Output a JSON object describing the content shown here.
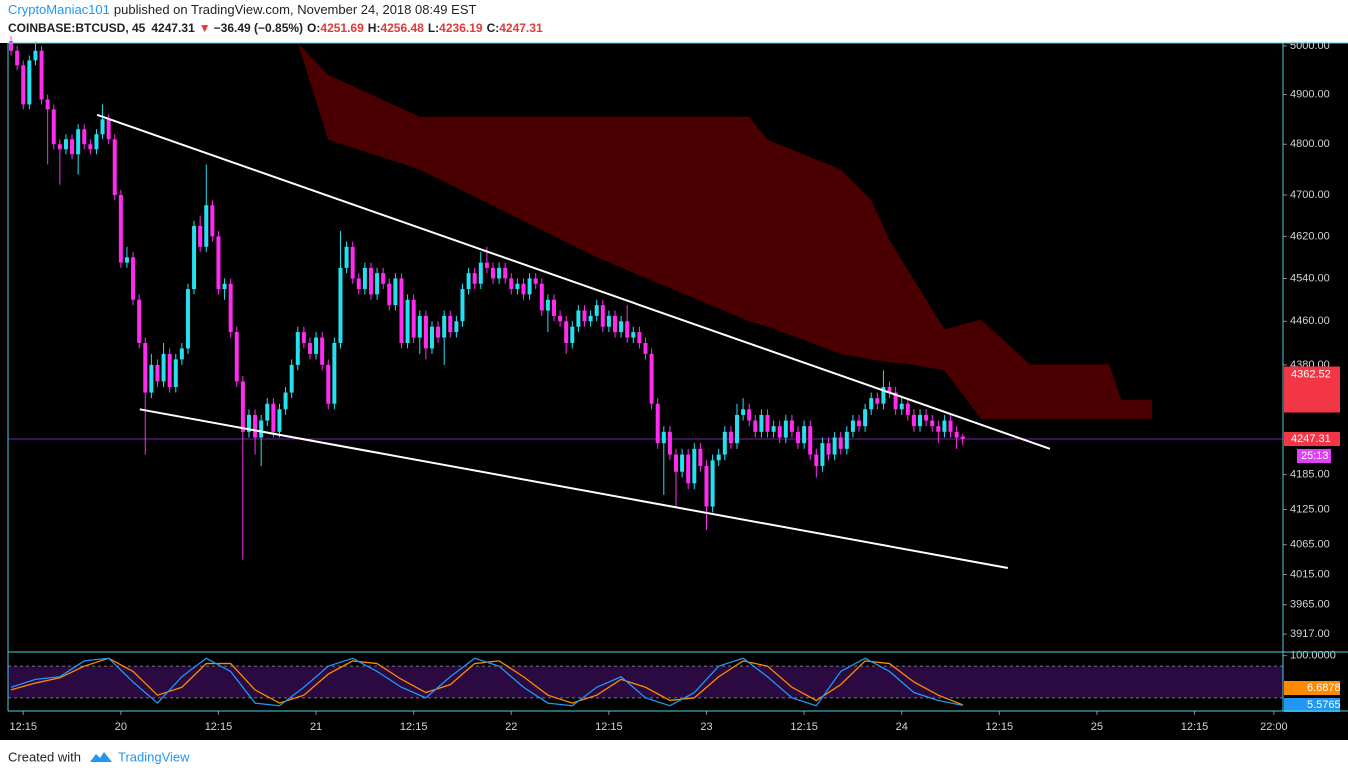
{
  "header": {
    "author": "CryptoManiac101",
    "published": "published on TradingView.com, November 24, 2018 08:49 EST",
    "symbol": "COINBASE:BTCUSD, 45",
    "price": "4247.31",
    "arrow": "▼",
    "change": "−36.49 (−0.85%)",
    "o_label": "O:",
    "o": "4251.69",
    "h_label": "H:",
    "h": "4256.48",
    "l_label": "L:",
    "l": "4236.19",
    "c_label": "C:",
    "c": "4247.31"
  },
  "footer": {
    "created": "Created with",
    "brand": "TradingView"
  },
  "chart_data": [
    {
      "type": "candlestick",
      "log_scale": true,
      "up_color": "#26e0f0",
      "down_color": "#ff2cf0",
      "ylim": [
        3888,
        5006
      ],
      "yticks": [
        {
          "value": 5000,
          "label": "5000.00"
        },
        {
          "value": 4900,
          "label": "4900.00"
        },
        {
          "value": 4800,
          "label": "4800.00"
        },
        {
          "value": 4700,
          "label": "4700.00"
        },
        {
          "value": 4620,
          "label": "4620.00"
        },
        {
          "value": 4540,
          "label": "4540.00"
        },
        {
          "value": 4460,
          "label": "4460.00"
        },
        {
          "value": 4380,
          "label": "4380.00"
        },
        {
          "value": 4185,
          "label": "4185.00"
        },
        {
          "value": 4125,
          "label": "4125.00"
        },
        {
          "value": 4065,
          "label": "4065.00"
        },
        {
          "value": 4015,
          "label": "4015.00"
        },
        {
          "value": 3965,
          "label": "3965.00"
        },
        {
          "value": 3917,
          "label": "3917.00"
        }
      ],
      "xlim": [
        -0.5,
        208.5
      ],
      "xticks": [
        {
          "value": 2,
          "label": "12:15"
        },
        {
          "value": 18,
          "label": "20"
        },
        {
          "value": 34,
          "label": "12:15"
        },
        {
          "value": 50,
          "label": "21"
        },
        {
          "value": 66,
          "label": "12:15"
        },
        {
          "value": 82,
          "label": "22"
        },
        {
          "value": 98,
          "label": "12:15"
        },
        {
          "value": 114,
          "label": "23"
        },
        {
          "value": 130,
          "label": "12:15"
        },
        {
          "value": 146,
          "label": "24"
        },
        {
          "value": 162,
          "label": "12:15"
        },
        {
          "value": 178,
          "label": "25"
        },
        {
          "value": 194,
          "label": "12:15"
        },
        {
          "value": 207,
          "label": "22:00"
        }
      ],
      "last_price": 4247.31,
      "marker_price": 4362.52,
      "countdown": "25:13",
      "cloud": {
        "color": "#4a0000",
        "x": [
          47,
          52,
          67,
          96,
          121,
          124,
          136,
          141,
          144,
          148,
          153,
          159,
          167,
          180,
          182,
          187
        ],
        "upper": [
          5006,
          4940,
          4855,
          4855,
          4855,
          4809,
          4750,
          4690,
          4613,
          4537,
          4445,
          4463,
          4381,
          4381,
          4317,
          4317
        ],
        "lower": [
          5006,
          4809,
          4750,
          4580,
          4460,
          4450,
          4400,
          4390,
          4385,
          4380,
          4370,
          4283,
          4283,
          4283,
          4283,
          4283
        ]
      },
      "trendlines": [
        {
          "x": [
            14.1,
            170.3
          ],
          "y": [
            4859,
            4230
          ]
        },
        {
          "x": [
            21.1,
            163.4
          ],
          "y": [
            4300,
            4026
          ]
        }
      ],
      "candles": [
        [
          5010,
          5020,
          4980,
          4990
        ],
        [
          4990,
          5000,
          4950,
          4960
        ],
        [
          4960,
          4970,
          4870,
          4880
        ],
        [
          4880,
          4980,
          4870,
          4970
        ],
        [
          4970,
          5010,
          4960,
          4990
        ],
        [
          4990,
          5000,
          4880,
          4890
        ],
        [
          4890,
          4900,
          4760,
          4870
        ],
        [
          4870,
          4880,
          4790,
          4800
        ],
        [
          4800,
          4810,
          4720,
          4790
        ],
        [
          4790,
          4820,
          4780,
          4810
        ],
        [
          4810,
          4820,
          4770,
          4780
        ],
        [
          4780,
          4840,
          4740,
          4830
        ],
        [
          4830,
          4840,
          4790,
          4800
        ],
        [
          4800,
          4810,
          4780,
          4790
        ],
        [
          4790,
          4830,
          4780,
          4820
        ],
        [
          4820,
          4880,
          4810,
          4850
        ],
        [
          4850,
          4860,
          4800,
          4810
        ],
        [
          4810,
          4820,
          4690,
          4700
        ],
        [
          4700,
          4710,
          4560,
          4570
        ],
        [
          4570,
          4600,
          4560,
          4580
        ],
        [
          4580,
          4590,
          4490,
          4500
        ],
        [
          4500,
          4510,
          4410,
          4420
        ],
        [
          4420,
          4430,
          4220,
          4330
        ],
        [
          4330,
          4400,
          4320,
          4380
        ],
        [
          4380,
          4390,
          4340,
          4350
        ],
        [
          4350,
          4420,
          4340,
          4400
        ],
        [
          4400,
          4410,
          4330,
          4340
        ],
        [
          4340,
          4400,
          4330,
          4390
        ],
        [
          4390,
          4420,
          4380,
          4410
        ],
        [
          4410,
          4530,
          4400,
          4520
        ],
        [
          4520,
          4650,
          4510,
          4640
        ],
        [
          4640,
          4660,
          4590,
          4600
        ],
        [
          4600,
          4760,
          4590,
          4680
        ],
        [
          4680,
          4690,
          4610,
          4620
        ],
        [
          4620,
          4630,
          4510,
          4520
        ],
        [
          4520,
          4540,
          4500,
          4530
        ],
        [
          4530,
          4540,
          4430,
          4440
        ],
        [
          4440,
          4450,
          4340,
          4350
        ],
        [
          4350,
          4360,
          4040,
          4260
        ],
        [
          4260,
          4300,
          4250,
          4290
        ],
        [
          4290,
          4300,
          4220,
          4250
        ],
        [
          4250,
          4290,
          4200,
          4280
        ],
        [
          4280,
          4320,
          4270,
          4310
        ],
        [
          4310,
          4320,
          4250,
          4260
        ],
        [
          4260,
          4310,
          4250,
          4300
        ],
        [
          4300,
          4340,
          4290,
          4330
        ],
        [
          4330,
          4390,
          4320,
          4380
        ],
        [
          4380,
          4450,
          4370,
          4440
        ],
        [
          4440,
          4450,
          4410,
          4420
        ],
        [
          4420,
          4430,
          4390,
          4400
        ],
        [
          4400,
          4440,
          4390,
          4430
        ],
        [
          4430,
          4440,
          4370,
          4380
        ],
        [
          4380,
          4390,
          4300,
          4310
        ],
        [
          4310,
          4430,
          4300,
          4420
        ],
        [
          4420,
          4630,
          4410,
          4560
        ],
        [
          4560,
          4610,
          4550,
          4600
        ],
        [
          4600,
          4610,
          4530,
          4540
        ],
        [
          4540,
          4550,
          4510,
          4520
        ],
        [
          4520,
          4570,
          4510,
          4560
        ],
        [
          4560,
          4570,
          4500,
          4510
        ],
        [
          4510,
          4560,
          4500,
          4550
        ],
        [
          4550,
          4560,
          4520,
          4530
        ],
        [
          4530,
          4540,
          4480,
          4490
        ],
        [
          4490,
          4550,
          4480,
          4540
        ],
        [
          4540,
          4550,
          4410,
          4420
        ],
        [
          4420,
          4510,
          4410,
          4500
        ],
        [
          4500,
          4510,
          4420,
          4430
        ],
        [
          4430,
          4480,
          4400,
          4470
        ],
        [
          4470,
          4480,
          4390,
          4410
        ],
        [
          4410,
          4460,
          4400,
          4450
        ],
        [
          4450,
          4460,
          4420,
          4430
        ],
        [
          4430,
          4480,
          4380,
          4470
        ],
        [
          4470,
          4480,
          4430,
          4440
        ],
        [
          4440,
          4470,
          4430,
          4460
        ],
        [
          4460,
          4530,
          4450,
          4520
        ],
        [
          4520,
          4560,
          4510,
          4550
        ],
        [
          4550,
          4560,
          4520,
          4530
        ],
        [
          4530,
          4590,
          4520,
          4570
        ],
        [
          4570,
          4600,
          4550,
          4560
        ],
        [
          4560,
          4570,
          4530,
          4540
        ],
        [
          4540,
          4570,
          4530,
          4560
        ],
        [
          4560,
          4570,
          4530,
          4540
        ],
        [
          4540,
          4550,
          4510,
          4520
        ],
        [
          4520,
          4540,
          4510,
          4530
        ],
        [
          4530,
          4540,
          4500,
          4510
        ],
        [
          4510,
          4550,
          4500,
          4540
        ],
        [
          4540,
          4550,
          4520,
          4530
        ],
        [
          4530,
          4540,
          4470,
          4480
        ],
        [
          4480,
          4510,
          4440,
          4500
        ],
        [
          4500,
          4510,
          4460,
          4470
        ],
        [
          4470,
          4480,
          4450,
          4460
        ],
        [
          4460,
          4470,
          4400,
          4420
        ],
        [
          4420,
          4460,
          4410,
          4450
        ],
        [
          4450,
          4490,
          4440,
          4480
        ],
        [
          4480,
          4490,
          4450,
          4460
        ],
        [
          4460,
          4480,
          4450,
          4470
        ],
        [
          4470,
          4500,
          4460,
          4490
        ],
        [
          4490,
          4500,
          4440,
          4450
        ],
        [
          4450,
          4480,
          4440,
          4470
        ],
        [
          4470,
          4480,
          4430,
          4440
        ],
        [
          4440,
          4470,
          4430,
          4460
        ],
        [
          4460,
          4490,
          4420,
          4430
        ],
        [
          4430,
          4450,
          4420,
          4440
        ],
        [
          4440,
          4450,
          4410,
          4420
        ],
        [
          4420,
          4430,
          4390,
          4400
        ],
        [
          4400,
          4410,
          4300,
          4310
        ],
        [
          4310,
          4320,
          4230,
          4240
        ],
        [
          4240,
          4270,
          4150,
          4260
        ],
        [
          4260,
          4270,
          4210,
          4220
        ],
        [
          4220,
          4230,
          4130,
          4190
        ],
        [
          4190,
          4230,
          4180,
          4220
        ],
        [
          4220,
          4230,
          4160,
          4170
        ],
        [
          4170,
          4240,
          4160,
          4230
        ],
        [
          4230,
          4240,
          4190,
          4200
        ],
        [
          4200,
          4210,
          4090,
          4130
        ],
        [
          4130,
          4220,
          4120,
          4210
        ],
        [
          4210,
          4230,
          4200,
          4220
        ],
        [
          4220,
          4270,
          4210,
          4260
        ],
        [
          4260,
          4270,
          4230,
          4240
        ],
        [
          4240,
          4310,
          4230,
          4290
        ],
        [
          4290,
          4320,
          4280,
          4300
        ],
        [
          4300,
          4310,
          4270,
          4280
        ],
        [
          4280,
          4290,
          4250,
          4260
        ],
        [
          4260,
          4300,
          4250,
          4290
        ],
        [
          4290,
          4300,
          4250,
          4260
        ],
        [
          4260,
          4280,
          4250,
          4270
        ],
        [
          4270,
          4280,
          4240,
          4250
        ],
        [
          4250,
          4290,
          4240,
          4280
        ],
        [
          4280,
          4290,
          4250,
          4260
        ],
        [
          4260,
          4270,
          4230,
          4240
        ],
        [
          4240,
          4280,
          4230,
          4270
        ],
        [
          4270,
          4280,
          4210,
          4220
        ],
        [
          4220,
          4230,
          4180,
          4200
        ],
        [
          4200,
          4250,
          4190,
          4240
        ],
        [
          4240,
          4250,
          4210,
          4220
        ],
        [
          4220,
          4260,
          4210,
          4250
        ],
        [
          4250,
          4260,
          4220,
          4230
        ],
        [
          4230,
          4270,
          4220,
          4260
        ],
        [
          4260,
          4290,
          4250,
          4280
        ],
        [
          4280,
          4290,
          4260,
          4270
        ],
        [
          4270,
          4310,
          4260,
          4300
        ],
        [
          4300,
          4330,
          4290,
          4320
        ],
        [
          4320,
          4330,
          4300,
          4310
        ],
        [
          4310,
          4370,
          4300,
          4340
        ],
        [
          4340,
          4350,
          4320,
          4330
        ],
        [
          4330,
          4340,
          4290,
          4300
        ],
        [
          4300,
          4320,
          4290,
          4310
        ],
        [
          4310,
          4320,
          4280,
          4290
        ],
        [
          4290,
          4300,
          4260,
          4270
        ],
        [
          4270,
          4300,
          4260,
          4290
        ],
        [
          4290,
          4300,
          4270,
          4280
        ],
        [
          4280,
          4290,
          4260,
          4270
        ],
        [
          4270,
          4280,
          4240,
          4260
        ],
        [
          4260,
          4290,
          4250,
          4280
        ],
        [
          4280,
          4290,
          4250,
          4260
        ],
        [
          4260,
          4270,
          4230,
          4250
        ],
        [
          4251.69,
          4256.48,
          4236.19,
          4247.31
        ]
      ]
    },
    {
      "type": "line",
      "ylim": [
        -5,
        105
      ],
      "xlim": [
        -0.5,
        208.5
      ],
      "yticks": [
        {
          "value": 100,
          "label": "100.0000"
        }
      ],
      "bands": [
        20,
        80
      ],
      "band_color": "#2a0a40",
      "x": [
        0,
        4,
        8,
        12,
        16,
        20,
        24,
        28,
        32,
        36,
        40,
        44,
        48,
        52,
        56,
        60,
        64,
        68,
        72,
        76,
        80,
        84,
        88,
        92,
        96,
        100,
        104,
        108,
        112,
        116,
        120,
        124,
        128,
        132,
        136,
        140,
        144,
        148,
        152,
        156
      ],
      "series": [
        {
          "color": "#ff8a00",
          "values": [
            35,
            48,
            58,
            80,
            95,
            70,
            25,
            40,
            85,
            85,
            35,
            10,
            25,
            65,
            90,
            85,
            55,
            30,
            45,
            85,
            90,
            60,
            25,
            10,
            25,
            55,
            40,
            15,
            20,
            60,
            90,
            80,
            40,
            15,
            45,
            90,
            85,
            50,
            25,
            6.6878
          ]
        },
        {
          "color": "#2196f3",
          "values": [
            40,
            55,
            60,
            90,
            95,
            50,
            10,
            60,
            95,
            70,
            10,
            5,
            40,
            80,
            95,
            70,
            40,
            20,
            60,
            95,
            80,
            40,
            10,
            5,
            40,
            60,
            20,
            5,
            30,
            80,
            95,
            60,
            20,
            5,
            70,
            95,
            70,
            30,
            15,
            5.5765
          ]
        }
      ]
    }
  ]
}
